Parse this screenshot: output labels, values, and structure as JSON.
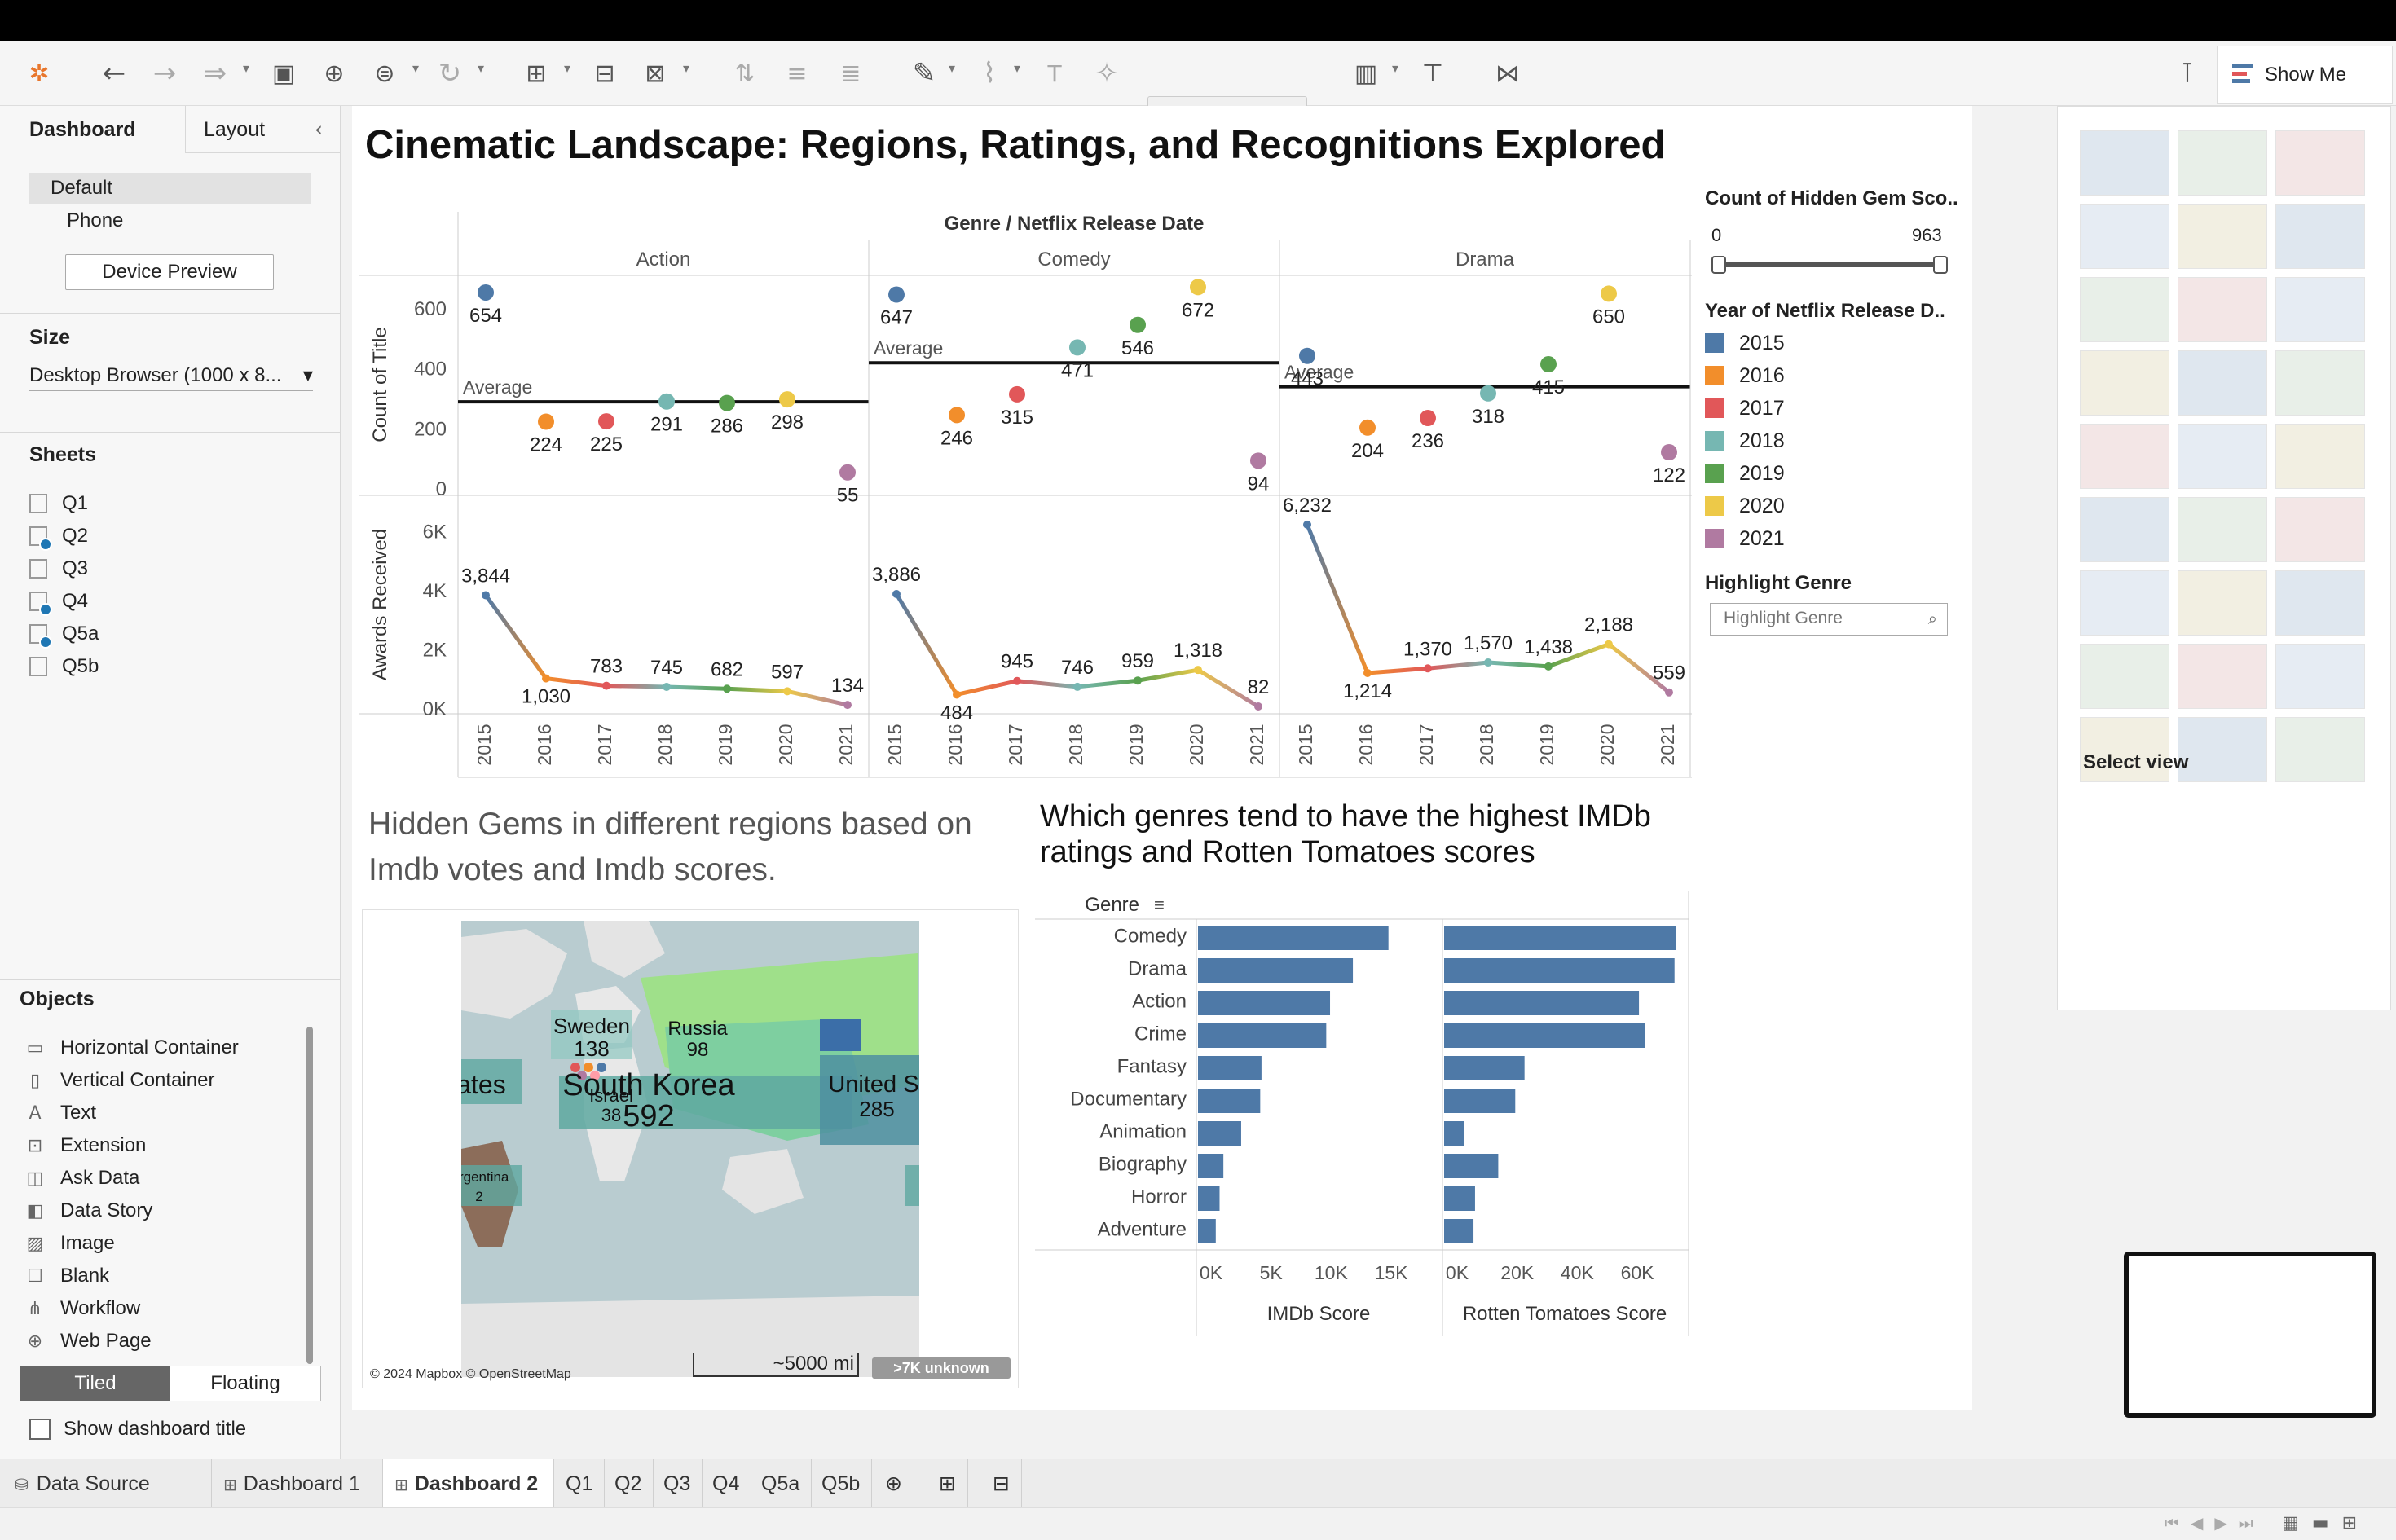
{
  "toolbar": {
    "show_me": "Show Me"
  },
  "left_panel": {
    "tabs": [
      "Dashboard",
      "Layout"
    ],
    "devices": [
      "Default",
      "Phone"
    ],
    "device_preview": "Device Preview",
    "size_label": "Size",
    "size_value": "Desktop Browser (1000 x 8...",
    "sheets_label": "Sheets",
    "sheets": [
      "Q1",
      "Q2",
      "Q3",
      "Q4",
      "Q5a",
      "Q5b"
    ],
    "objects_label": "Objects",
    "objects": [
      "Horizontal Container",
      "Vertical Container",
      "Text",
      "Extension",
      "Ask Data",
      "Data Story",
      "Image",
      "Blank",
      "Workflow",
      "Web Page"
    ],
    "tiled": "Tiled",
    "floating": "Floating",
    "show_title": "Show dashboard title"
  },
  "dashboard": {
    "title": "Cinematic Landscape: Regions, Ratings, and Recognitions Explored",
    "map_title": "Hidden Gems in different regions based on Imdb votes and Imdb scores.",
    "bar_title": "Which genres tend to have the highest IMDb ratings and Rotten Tomatoes scores"
  },
  "filters": {
    "hidden_gem_label": "Count of Hidden Gem Sco..",
    "range_min": "0",
    "range_max": "963",
    "year_label": "Year of Netflix Release D..",
    "highlight_label": "Highlight Genre",
    "highlight_placeholder": "Highlight Genre"
  },
  "right_panel": {
    "select_view": "Select view"
  },
  "bottom_tabs": [
    "Data Source",
    "Dashboard 1",
    "Dashboard 2",
    "Q1",
    "Q2",
    "Q3",
    "Q4",
    "Q5a",
    "Q5b"
  ],
  "colors": {
    "2015": "#4e79a7",
    "2016": "#f28e2b",
    "2017": "#e15759",
    "2018": "#76b7b2",
    "2019": "#59a14f",
    "2020": "#edc948",
    "2021": "#b07aa1"
  },
  "chart_data": [
    {
      "type": "scatter",
      "title": "Genre / Netflix Release Date",
      "ylabel": "Count of Title",
      "ylim": [
        0,
        700
      ],
      "yticks": [
        "0",
        "200",
        "400",
        "600"
      ],
      "reference_line": "Average",
      "x": [
        "2015",
        "2016",
        "2017",
        "2018",
        "2019",
        "2020",
        "2021"
      ],
      "panels": [
        {
          "name": "Action",
          "values": [
            654,
            224,
            225,
            291,
            286,
            298,
            55
          ],
          "average": "Average",
          "average_value": 290
        },
        {
          "name": "Comedy",
          "values": [
            647,
            246,
            315,
            471,
            546,
            672,
            94
          ],
          "average": "Average",
          "average_value": 420
        },
        {
          "name": "Drama",
          "values": [
            443,
            204,
            236,
            318,
            415,
            650,
            122
          ],
          "average": "Average",
          "average_value": 340
        }
      ]
    },
    {
      "type": "line",
      "ylabel": "Awards Received",
      "ylim": [
        0,
        7000
      ],
      "yticks": [
        "0K",
        "2K",
        "4K",
        "6K"
      ],
      "x": [
        "2015",
        "2016",
        "2017",
        "2018",
        "2019",
        "2020",
        "2021"
      ],
      "panels": [
        {
          "name": "Action",
          "values": [
            3844,
            1030,
            783,
            745,
            682,
            597,
            134
          ],
          "labels": [
            "3,844",
            "1,030",
            "783",
            "745",
            "682",
            "597",
            "134"
          ]
        },
        {
          "name": "Comedy",
          "values": [
            3886,
            484,
            945,
            746,
            959,
            1318,
            82
          ],
          "labels": [
            "3,886",
            "484",
            "945",
            "746",
            "959",
            "1,318",
            "82"
          ]
        },
        {
          "name": "Drama",
          "values": [
            6232,
            1214,
            1370,
            1570,
            1438,
            2188,
            559
          ],
          "labels": [
            "6,232",
            "1,214",
            "1,370",
            "1,570",
            "1,438",
            "2,188",
            "559"
          ]
        }
      ]
    },
    {
      "type": "bar",
      "categories": [
        "Comedy",
        "Drama",
        "Action",
        "Crime",
        "Fantasy",
        "Documentary",
        "Animation",
        "Biography",
        "Horror",
        "Adventure"
      ],
      "xlabel_header": "Genre",
      "series": [
        {
          "name": "IMDb Score",
          "values": [
            15000,
            12200,
            10400,
            10100,
            5000,
            4900,
            3400,
            2000,
            1700,
            1400
          ],
          "ticks": [
            "0K",
            "5K",
            "10K",
            "15K"
          ],
          "max": 19000
        },
        {
          "name": "Rotten Tomatoes Score",
          "values": [
            75000,
            74500,
            63000,
            65000,
            26000,
            23000,
            6500,
            17500,
            10000,
            9500
          ],
          "ticks": [
            "0K",
            "20K",
            "40K",
            "60K"
          ],
          "max": 78000
        }
      ]
    },
    {
      "type": "map",
      "regions": [
        {
          "name": "Sweden",
          "value": "138"
        },
        {
          "name": "Russia",
          "value": "98"
        },
        {
          "name": "South Korea",
          "value": "592"
        },
        {
          "name": "Israel",
          "value": "38"
        },
        {
          "name": "United St",
          "value": "285"
        },
        {
          "name": "tates",
          "value": ""
        },
        {
          "name": "Argentina",
          "value": "2"
        }
      ],
      "attribution": "© 2024 Mapbox © OpenStreetMap",
      "scale": "~5000 mi",
      "unknown": ">7K unknown"
    }
  ]
}
